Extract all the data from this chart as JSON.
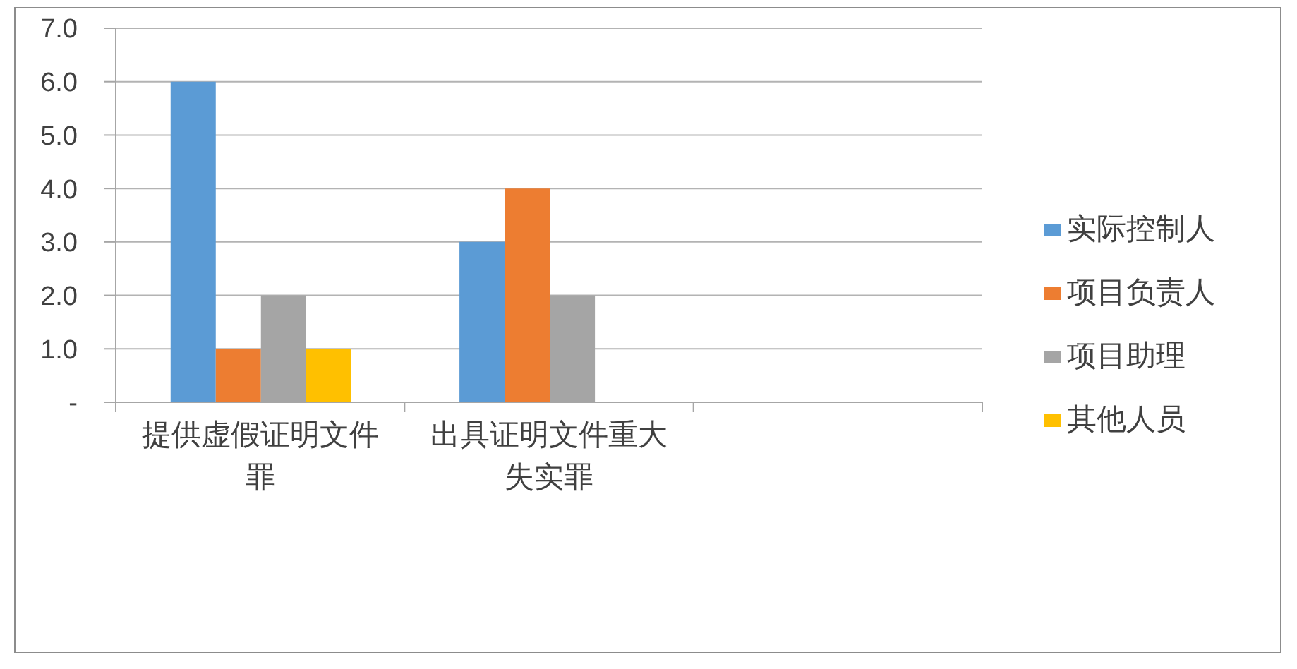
{
  "chart_data": {
    "type": "bar",
    "categories": [
      "提供虚假证明文件罪",
      "出具证明文件重大失实罪",
      null
    ],
    "series": [
      {
        "name": "实际控制人",
        "color": "#5b9bd5",
        "values": [
          6,
          3,
          null
        ]
      },
      {
        "name": "项目负责人",
        "color": "#ed7d31",
        "values": [
          1,
          4,
          null
        ]
      },
      {
        "name": "项目助理",
        "color": "#a5a5a5",
        "values": [
          2,
          2,
          null
        ]
      },
      {
        "name": "其他人员",
        "color": "#ffc000",
        "values": [
          1,
          null,
          null
        ]
      }
    ],
    "ylim": [
      0,
      7
    ],
    "yticks": [
      {
        "value": 0,
        "label": "-"
      },
      {
        "value": 1,
        "label": "1.0"
      },
      {
        "value": 2,
        "label": "2.0"
      },
      {
        "value": 3,
        "label": "3.0"
      },
      {
        "value": 4,
        "label": "4.0"
      },
      {
        "value": 5,
        "label": "5.0"
      },
      {
        "value": 6,
        "label": "6.0"
      },
      {
        "value": 7,
        "label": "7.0"
      }
    ],
    "grid": "y",
    "legend": "right"
  }
}
